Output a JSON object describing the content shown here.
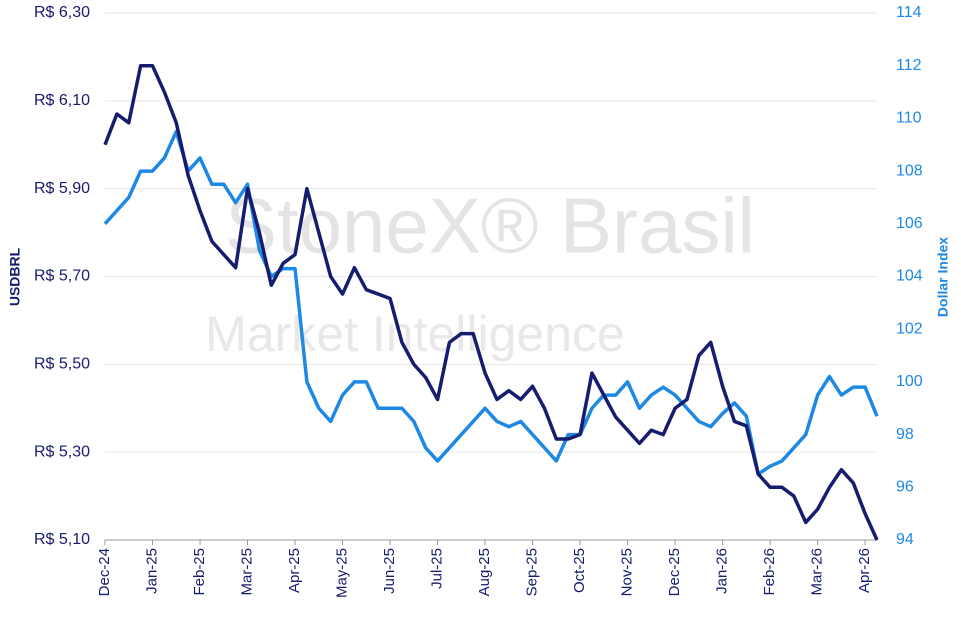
{
  "chart_data": {
    "type": "line",
    "watermark": [
      "StoneX® Brasil",
      "Market Intelligence"
    ],
    "y_label": "USDBRL",
    "y2_label": "Dollar Index",
    "categories": [
      "Dec-24",
      null,
      null,
      null,
      "Jan-25",
      null,
      null,
      null,
      "Feb-25",
      null,
      null,
      null,
      "Mar-25",
      null,
      null,
      null,
      "Apr-25",
      null,
      null,
      null,
      "May-25",
      null,
      null,
      null,
      "Jun-25",
      null,
      null,
      null,
      "Jul-25",
      null,
      null,
      null,
      "Aug-25",
      null,
      null,
      null,
      "Sep-25",
      null,
      null,
      null,
      "Oct-25",
      null,
      null,
      null,
      "Nov-25",
      null,
      null,
      null,
      "Dec-25",
      null,
      null,
      null,
      "Jan-26",
      null,
      null,
      null,
      "Feb-26",
      null,
      null,
      null,
      "Mar-26",
      null,
      null,
      null,
      "Apr-26",
      null
    ],
    "ylim": [
      5.1,
      6.3
    ],
    "yticks": [
      {
        "value": 5.1,
        "label": "R$ 5,10"
      },
      {
        "value": 5.3,
        "label": "R$ 5,30"
      },
      {
        "value": 5.5,
        "label": "R$ 5,50"
      },
      {
        "value": 5.7,
        "label": "R$ 5,70"
      },
      {
        "value": 5.9,
        "label": "R$ 5,90"
      },
      {
        "value": 6.1,
        "label": "R$ 6,10"
      },
      {
        "value": 6.3,
        "label": "R$ 6,30"
      }
    ],
    "y2lim": [
      94,
      114
    ],
    "y2ticks": [
      94,
      96,
      98,
      100,
      102,
      104,
      106,
      108,
      110,
      112,
      114
    ],
    "grid": true,
    "series": [
      {
        "name": "USDBRL",
        "color": "#161c6e",
        "values": [
          6.0,
          6.07,
          6.05,
          6.18,
          6.18,
          6.12,
          6.05,
          5.93,
          5.85,
          5.78,
          5.75,
          5.72,
          5.9,
          5.8,
          5.68,
          5.73,
          5.75,
          5.9,
          5.8,
          5.7,
          5.66,
          5.72,
          5.67,
          5.66,
          5.65,
          5.55,
          5.5,
          5.47,
          5.42,
          5.55,
          5.57,
          5.57,
          5.48,
          5.42,
          5.44,
          5.42,
          5.45,
          5.4,
          5.33,
          5.33,
          5.34,
          5.48,
          5.43,
          5.38,
          5.35,
          5.32,
          5.35,
          5.34,
          5.4,
          5.42,
          5.52,
          5.55,
          5.45,
          5.37,
          5.36,
          5.25,
          5.22,
          5.22,
          5.2,
          5.14,
          5.17,
          5.22,
          5.26,
          5.23,
          5.16,
          5.1
        ]
      },
      {
        "name": "Dollar Index",
        "color": "#1e88e5",
        "axis": "y2",
        "values": [
          106,
          106.5,
          107,
          108,
          108,
          108.5,
          109.5,
          108,
          108.5,
          107.5,
          107.5,
          106.8,
          107.5,
          105,
          104,
          104.3,
          104.3,
          100,
          99,
          98.5,
          99.5,
          100,
          100,
          99,
          99,
          99,
          98.5,
          97.5,
          97,
          97.5,
          98,
          98.5,
          99,
          98.5,
          98.3,
          98.5,
          98,
          97.5,
          97,
          98,
          98,
          99,
          99.5,
          99.5,
          100,
          99,
          99.5,
          99.8,
          99.5,
          99,
          98.5,
          98.3,
          98.8,
          99.2,
          98.7,
          96.5,
          96.8,
          97,
          97.5,
          98,
          99.5,
          100.2,
          99.5,
          99.8,
          99.8,
          98.7
        ]
      }
    ]
  }
}
